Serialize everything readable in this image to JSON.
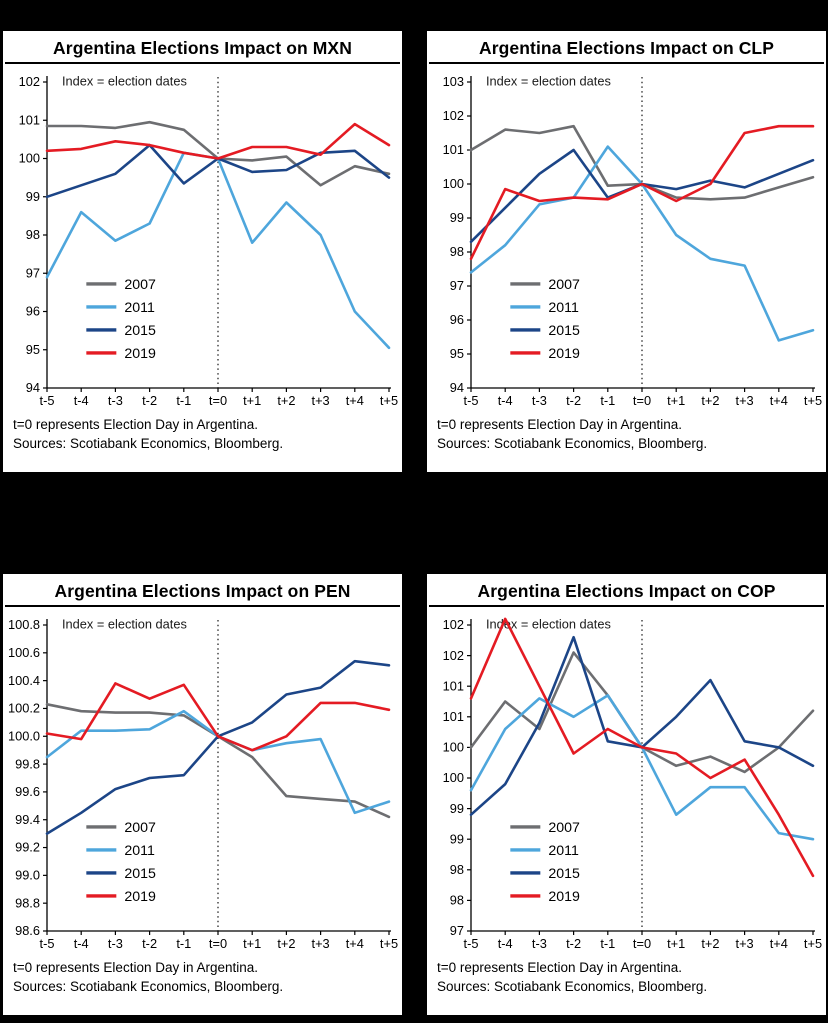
{
  "page": {
    "background": "#000000"
  },
  "palette": {
    "2007": "#6d6e71",
    "2011": "#4ea6dc",
    "2015": "#1c4587",
    "2019": "#e41b23"
  },
  "footnote": {
    "line1": "t=0 represents Election Day in Argentina.",
    "line2": "Sources: Scotiabank Economics, Bloomberg."
  },
  "chart_data": [
    {
      "type": "line",
      "title": "Argentina Elections Impact on MXN",
      "annotation": "Index = election dates",
      "categories": [
        "t-5",
        "t-4",
        "t-3",
        "t-2",
        "t-1",
        "t=0",
        "t+1",
        "t+2",
        "t+3",
        "t+4",
        "t+5"
      ],
      "ylim": [
        94,
        102
      ],
      "ytick_values": [
        102,
        101,
        100,
        99,
        98,
        97,
        96,
        95,
        94
      ],
      "ytick_labels": [
        "102",
        "101",
        "100",
        "99",
        "98",
        "97",
        "96",
        "95",
        "94"
      ],
      "vline_at": "t=0",
      "legend": {
        "fx": 0.115,
        "fy": 0.66
      },
      "series": [
        {
          "name": "2007",
          "values": [
            100.85,
            100.85,
            100.8,
            100.95,
            100.75,
            100.0,
            99.95,
            100.05,
            99.3,
            99.8,
            99.6
          ]
        },
        {
          "name": "2011",
          "values": [
            96.9,
            98.6,
            97.85,
            98.3,
            100.15,
            100.0,
            97.8,
            98.85,
            98.0,
            96.0,
            95.05
          ]
        },
        {
          "name": "2015",
          "values": [
            99.0,
            99.3,
            99.6,
            100.35,
            99.35,
            100.0,
            99.65,
            99.7,
            100.15,
            100.2,
            99.5
          ]
        },
        {
          "name": "2019",
          "values": [
            100.2,
            100.25,
            100.45,
            100.35,
            100.15,
            100.0,
            100.3,
            100.3,
            100.1,
            100.9,
            100.35
          ]
        }
      ]
    },
    {
      "type": "line",
      "title": "Argentina Elections Impact on CLP",
      "annotation": "Index = election dates",
      "categories": [
        "t-5",
        "t-4",
        "t-3",
        "t-2",
        "t-1",
        "t=0",
        "t+1",
        "t+2",
        "t+3",
        "t+4",
        "t+5"
      ],
      "ylim": [
        94,
        103
      ],
      "ytick_values": [
        103,
        102,
        101,
        100,
        99,
        98,
        97,
        96,
        95,
        94
      ],
      "ytick_labels": [
        "103",
        "102",
        "101",
        "100",
        "99",
        "98",
        "97",
        "96",
        "95",
        "94"
      ],
      "vline_at": "t=0",
      "legend": {
        "fx": 0.115,
        "fy": 0.66
      },
      "series": [
        {
          "name": "2007",
          "values": [
            101.0,
            101.6,
            101.5,
            101.7,
            99.95,
            100.0,
            99.6,
            99.55,
            99.6,
            99.9,
            100.2
          ]
        },
        {
          "name": "2011",
          "values": [
            97.4,
            98.2,
            99.4,
            99.6,
            101.1,
            100.0,
            98.5,
            97.8,
            97.6,
            95.4,
            95.7
          ]
        },
        {
          "name": "2015",
          "values": [
            98.3,
            99.3,
            100.3,
            101.0,
            99.6,
            100.0,
            99.85,
            100.1,
            99.9,
            100.3,
            100.7
          ]
        },
        {
          "name": "2019",
          "values": [
            97.8,
            99.85,
            99.5,
            99.6,
            99.55,
            100.0,
            99.5,
            100.0,
            101.5,
            101.7,
            101.7
          ]
        }
      ]
    },
    {
      "type": "line",
      "title": "Argentina Elections Impact on PEN",
      "annotation": "Index = election dates",
      "categories": [
        "t-5",
        "t-4",
        "t-3",
        "t-2",
        "t-1",
        "t=0",
        "t+1",
        "t+2",
        "t+3",
        "t+4",
        "t+5"
      ],
      "ylim": [
        98.6,
        100.8
      ],
      "ytick_values": [
        100.8,
        100.6,
        100.4,
        100.2,
        100.0,
        99.8,
        99.6,
        99.4,
        99.2,
        99.0,
        98.8,
        98.6
      ],
      "ytick_labels": [
        "100.8",
        "100.6",
        "100.4",
        "100.2",
        "100.0",
        "99.8",
        "99.6",
        "99.4",
        "99.2",
        "99.0",
        "98.8",
        "98.6"
      ],
      "vline_at": "t=0",
      "legend": {
        "fx": 0.115,
        "fy": 0.66
      },
      "series": [
        {
          "name": "2007",
          "values": [
            100.23,
            100.18,
            100.17,
            100.17,
            100.15,
            100.0,
            99.85,
            99.57,
            99.55,
            99.53,
            99.42
          ]
        },
        {
          "name": "2011",
          "values": [
            99.85,
            100.04,
            100.04,
            100.05,
            100.18,
            100.0,
            99.9,
            99.95,
            99.98,
            99.45,
            99.53
          ]
        },
        {
          "name": "2015",
          "values": [
            99.3,
            99.45,
            99.62,
            99.7,
            99.72,
            100.0,
            100.1,
            100.3,
            100.35,
            100.54,
            100.51
          ]
        },
        {
          "name": "2019",
          "values": [
            100.02,
            99.98,
            100.38,
            100.27,
            100.37,
            100.0,
            99.9,
            100.0,
            100.24,
            100.24,
            100.19
          ]
        }
      ]
    },
    {
      "type": "line",
      "title": "Argentina Elections Impact on COP",
      "annotation": "Index = election dates",
      "categories": [
        "t-5",
        "t-4",
        "t-3",
        "t-2",
        "t-1",
        "t=0",
        "t+1",
        "t+2",
        "t+3",
        "t+4",
        "t+5"
      ],
      "ylim": [
        97,
        102
      ],
      "ytick_values": [
        102,
        101.5,
        101,
        100.5,
        100,
        99.5,
        99,
        98.5,
        98,
        97.5,
        97
      ],
      "ytick_labels": [
        "102",
        "102",
        "101",
        "101",
        "100",
        "100",
        "99",
        "99",
        "98",
        "98",
        "97"
      ],
      "vline_at": "t=0",
      "legend": {
        "fx": 0.115,
        "fy": 0.66
      },
      "series": [
        {
          "name": "2007",
          "values": [
            100.0,
            100.75,
            100.3,
            101.55,
            100.85,
            100.0,
            99.7,
            99.85,
            99.6,
            100.0,
            100.6
          ]
        },
        {
          "name": "2011",
          "values": [
            99.3,
            100.3,
            100.8,
            100.5,
            100.85,
            100.0,
            98.9,
            99.35,
            99.35,
            98.6,
            98.5
          ]
        },
        {
          "name": "2015",
          "values": [
            98.9,
            99.4,
            100.4,
            101.8,
            100.1,
            100.0,
            100.5,
            101.1,
            100.1,
            100.0,
            99.7
          ]
        },
        {
          "name": "2019",
          "values": [
            100.8,
            102.1,
            101.0,
            99.9,
            100.3,
            100.0,
            99.9,
            99.5,
            99.8,
            98.9,
            97.9
          ]
        }
      ]
    }
  ]
}
